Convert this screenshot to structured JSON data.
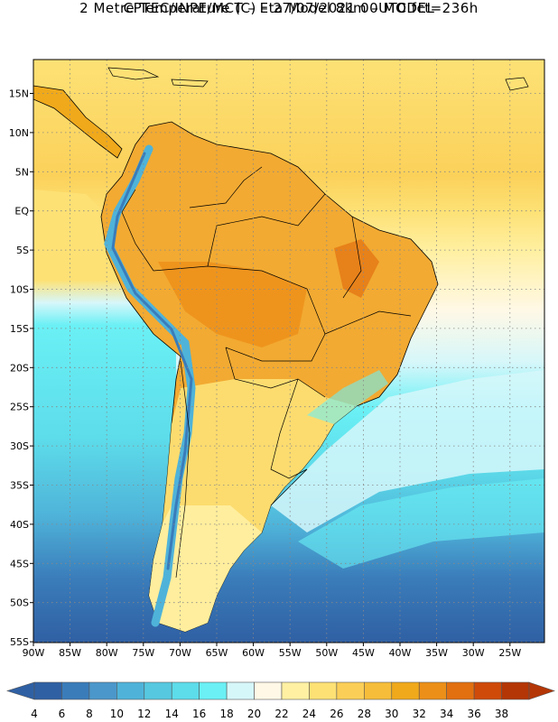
{
  "title_line1": "CPTEC/INPE/MCT –  Eta Model 8km – MODEL",
  "title_line2": "2 Metre Temperature (C) – 27/07/2021 00UTC fct=236h",
  "map": {
    "lat_labels": [
      "15N",
      "10N",
      "5N",
      "EQ",
      "5S",
      "10S",
      "15S",
      "20S",
      "25S",
      "30S",
      "35S",
      "40S",
      "45S",
      "50S",
      "55S"
    ],
    "lon_labels": [
      "90W",
      "85W",
      "80W",
      "75W",
      "70W",
      "65W",
      "60W",
      "55W",
      "50W",
      "45W",
      "40W",
      "35W",
      "30W",
      "25W"
    ]
  },
  "legend": {
    "labels": [
      "4",
      "6",
      "8",
      "10",
      "12",
      "14",
      "16",
      "18",
      "20",
      "22",
      "24",
      "26",
      "28",
      "30",
      "32",
      "34",
      "36",
      "38"
    ],
    "colors": [
      "#2f60a4",
      "#3a7cba",
      "#4b97cb",
      "#4fb3d9",
      "#56c8e0",
      "#5ddcea",
      "#6af0f5",
      "#d6f7fa",
      "#fff8e6",
      "#fff0a2",
      "#fde175",
      "#fbcf57",
      "#f6bd3a",
      "#f0a91b",
      "#ec8f18",
      "#e26f10",
      "#cf4a09",
      "#b43606"
    ]
  }
}
